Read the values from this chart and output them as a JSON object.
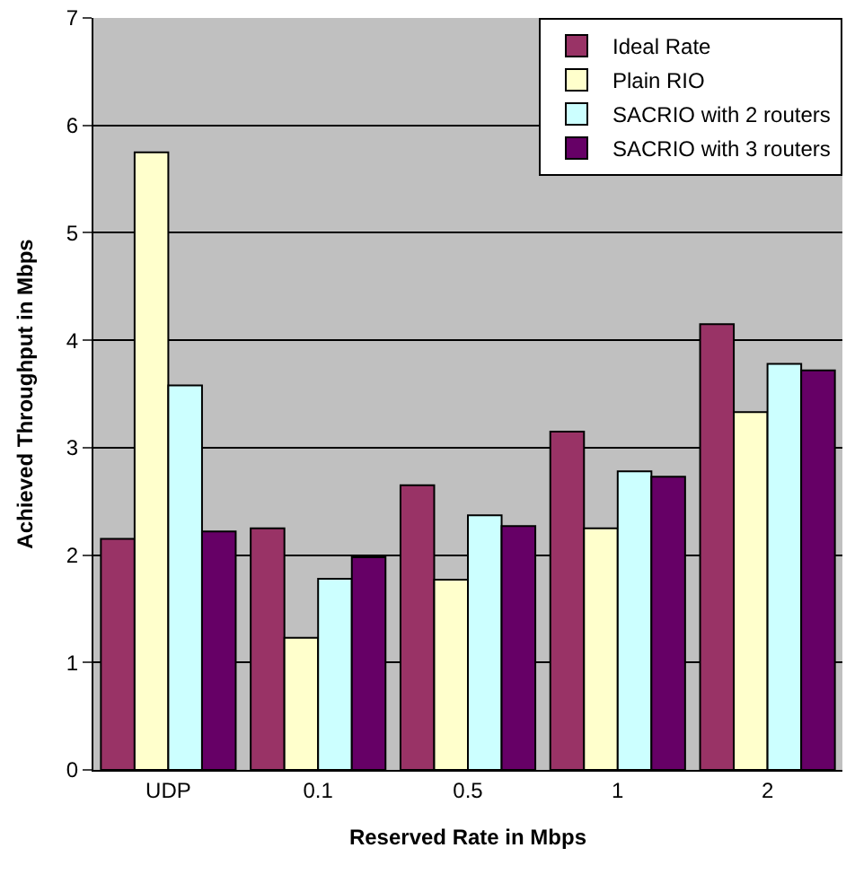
{
  "chart_data": {
    "type": "bar",
    "xlabel": "Reserved Rate in Mbps",
    "ylabel": "Achieved Throughput in Mbps",
    "categories": [
      "UDP",
      "0.1",
      "0.5",
      "1",
      "2"
    ],
    "series": [
      {
        "name": "Ideal Rate",
        "color": "#993366",
        "values": [
          2.15,
          2.25,
          2.65,
          3.15,
          4.15
        ]
      },
      {
        "name": "Plain RIO",
        "color": "#ffffcc",
        "values": [
          5.75,
          1.23,
          1.77,
          2.25,
          3.33
        ]
      },
      {
        "name": "SACRIO with 2 routers",
        "color": "#ccffff",
        "values": [
          3.58,
          1.78,
          2.37,
          2.78,
          3.78
        ]
      },
      {
        "name": "SACRIO with 3 routers",
        "color": "#660066",
        "values": [
          2.22,
          1.98,
          2.27,
          2.73,
          3.72
        ]
      }
    ],
    "ylim": [
      0,
      7
    ],
    "yticks": [
      0,
      1,
      2,
      3,
      4,
      5,
      6,
      7
    ],
    "grid": "y",
    "legend": "top right"
  }
}
